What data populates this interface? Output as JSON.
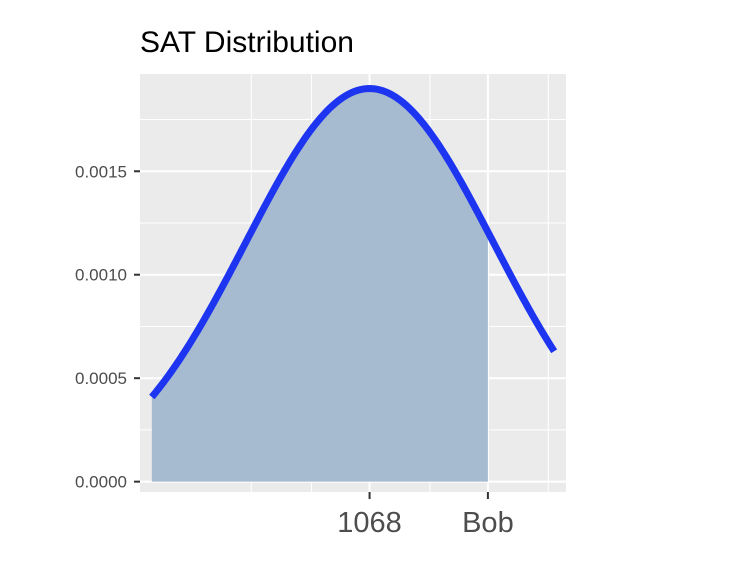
{
  "chart_data": {
    "type": "area",
    "title": "SAT Distribution",
    "xlabel": "",
    "ylabel": "",
    "distribution": {
      "family": "normal",
      "mean": 1068,
      "sd": 210
    },
    "xlim": [
      680,
      1400
    ],
    "ylim": [
      -5e-05,
      0.00197
    ],
    "curve_range": [
      700,
      1380
    ],
    "shaded_range": [
      700,
      1268
    ],
    "x_ticks": [
      {
        "value": 1068,
        "label": "1068"
      },
      {
        "value": 1268,
        "label": "Bob"
      }
    ],
    "x_minor_gridlines": [
      868,
      970,
      1170,
      1370
    ],
    "y_ticks": [
      {
        "value": 0.0,
        "label": "0.0000"
      },
      {
        "value": 0.0005,
        "label": "0.0005"
      },
      {
        "value": 0.001,
        "label": "0.0010"
      },
      {
        "value": 0.0015,
        "label": "0.0015"
      }
    ],
    "y_minor_gridlines": [
      0.00025,
      0.00075,
      0.00125,
      0.00175
    ],
    "grid": true,
    "legend": "none",
    "colors": {
      "panel": "#ebebeb",
      "grid": "#ffffff",
      "line": "#1d35f0",
      "fill": "#a2b7cf"
    }
  }
}
